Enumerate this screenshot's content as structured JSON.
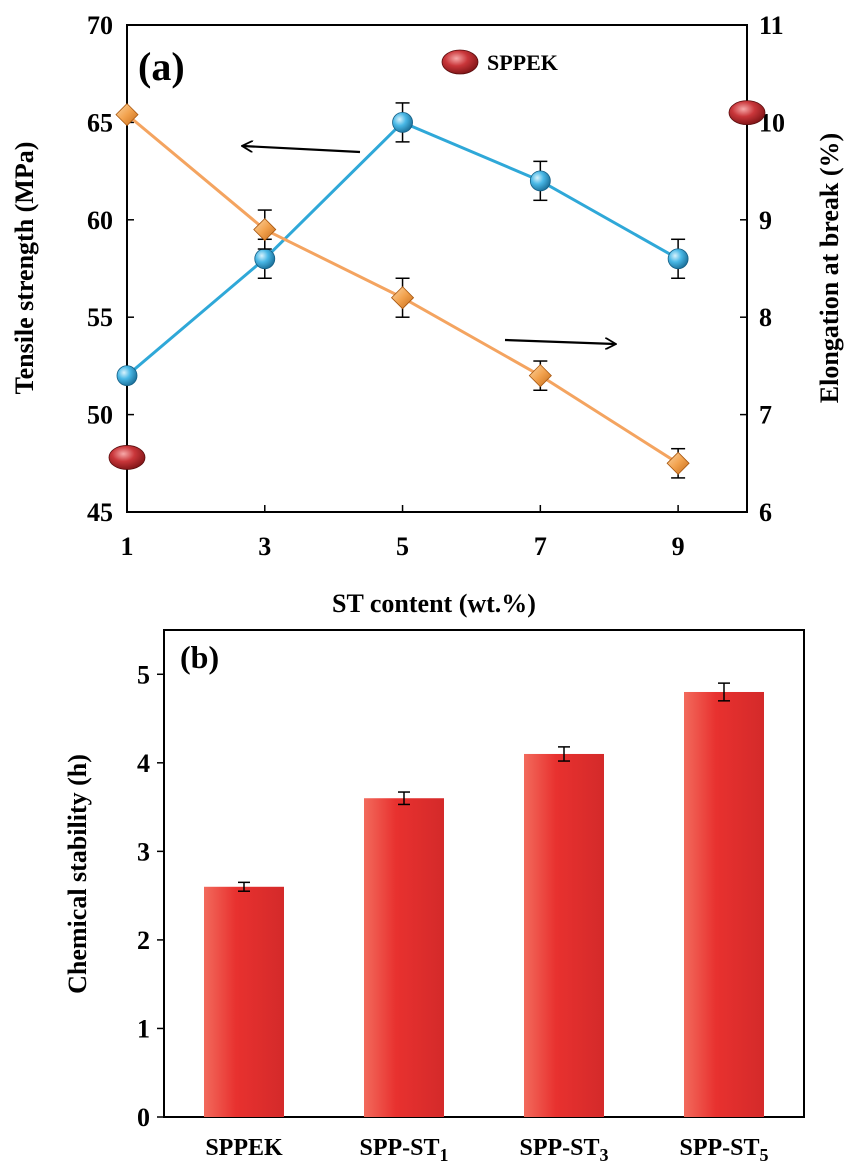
{
  "chart_data": [
    {
      "panel": "(a)",
      "type": "line",
      "xlabel": "ST content (wt.%)",
      "ylabel_left": "Tensile strength (MPa)",
      "ylabel_right": "Elongation at break (%)",
      "x_ticks": [
        "1",
        "3",
        "5",
        "7",
        "9"
      ],
      "xlim": [
        1,
        10
      ],
      "ylim_left": [
        45,
        70
      ],
      "ylim_right": [
        6,
        11
      ],
      "yticks_left": [
        "45",
        "50",
        "55",
        "60",
        "65",
        "70"
      ],
      "yticks_right": [
        "6",
        "7",
        "8",
        "9",
        "10",
        "11"
      ],
      "series": [
        {
          "axis": "left",
          "color": "#2fa8d8",
          "marker": "circle",
          "x": [
            1,
            3,
            5,
            7,
            9
          ],
          "y": [
            52,
            58,
            65,
            62,
            58
          ],
          "err": [
            0,
            1,
            1,
            1,
            1
          ]
        },
        {
          "axis": "right",
          "color": "#f4a460",
          "marker": "diamond",
          "x": [
            1,
            3,
            5,
            7,
            9
          ],
          "y": [
            10.08,
            8.9,
            8.2,
            7.4,
            6.5
          ],
          "err": [
            0,
            0.2,
            0.2,
            0.15,
            0.15
          ]
        }
      ],
      "reference": {
        "label": "SPPEK",
        "color": "#c0282e",
        "left_value": 47.8,
        "right_value": 10.1
      },
      "arrows": [
        "pointing left to Tensile strength axis",
        "pointing right to Elongation axis"
      ],
      "legend": "top-center"
    },
    {
      "panel": "(b)",
      "type": "bar",
      "ylabel": "Chemical stability (h)",
      "categories": [
        "SPPEK",
        "SPP-ST",
        "SPP-ST",
        "SPP-ST"
      ],
      "category_subscripts": [
        "",
        "1",
        "3",
        "5"
      ],
      "values": [
        2.6,
        3.6,
        4.1,
        4.8
      ],
      "err": [
        0.05,
        0.07,
        0.08,
        0.1
      ],
      "ylim": [
        0,
        5.5
      ],
      "yticks": [
        "0",
        "1",
        "2",
        "3",
        "4",
        "5"
      ],
      "color": "#e8312f"
    }
  ]
}
